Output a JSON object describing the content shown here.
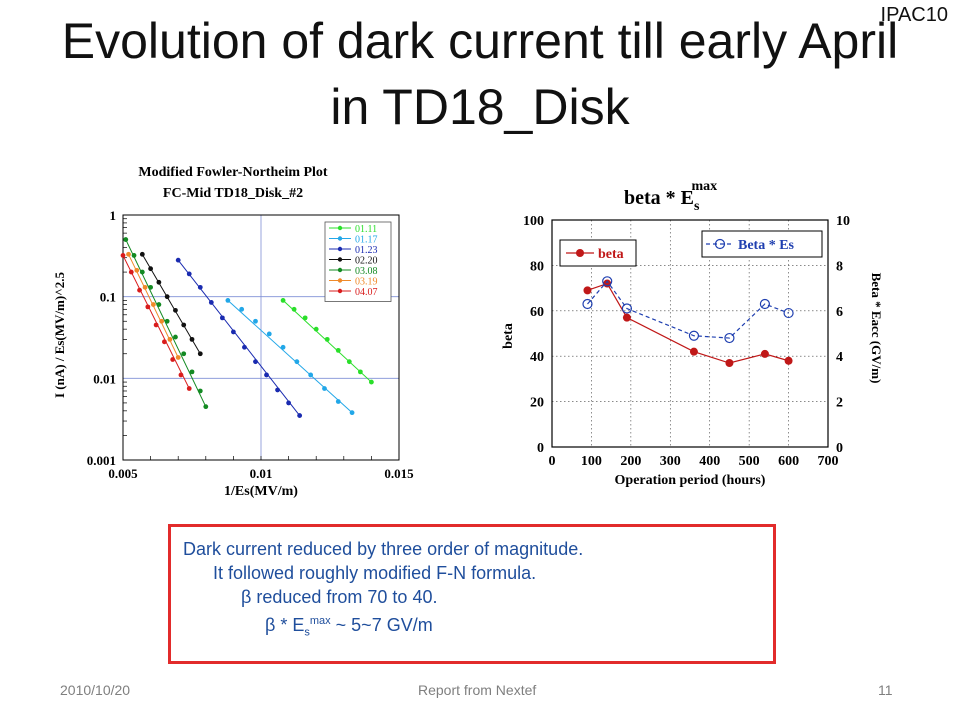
{
  "header": {
    "tag": "IPAC10",
    "title_line1": "Evolution of dark current till early April",
    "title_line2": "in TD18_Disk"
  },
  "chart_data": [
    {
      "type": "scatter",
      "title": "Modified Fowler-Northeim Plot",
      "subtitle": "FC-Mid   TD18_Disk_#2",
      "xlabel": "1/Es(MV/m)",
      "ylabel": "I (nA) / Es(MV/m)^2.5",
      "yscale": "log",
      "xlim": [
        0.005,
        0.015
      ],
      "ylim": [
        0.001,
        1
      ],
      "xticks": [
        "0.005",
        "0.01",
        "0.015"
      ],
      "yticks": [
        "0.001",
        "0.01",
        "0.1",
        "1"
      ],
      "legend_position": "top-right",
      "series": [
        {
          "name": "01.11",
          "color": "#2adf2a",
          "x": [
            0.0108,
            0.0112,
            0.0116,
            0.012,
            0.0124,
            0.0128,
            0.0132,
            0.0136,
            0.014
          ],
          "y": [
            0.09,
            0.07,
            0.055,
            0.04,
            0.03,
            0.022,
            0.016,
            0.012,
            0.009
          ]
        },
        {
          "name": "01.17",
          "color": "#22a7e8",
          "x": [
            0.0088,
            0.0093,
            0.0098,
            0.0103,
            0.0108,
            0.0113,
            0.0118,
            0.0123,
            0.0128,
            0.0133
          ],
          "y": [
            0.09,
            0.07,
            0.05,
            0.035,
            0.024,
            0.016,
            0.011,
            0.0075,
            0.0052,
            0.0038
          ]
        },
        {
          "name": "01.23",
          "color": "#1a2bb0",
          "x": [
            0.007,
            0.0074,
            0.0078,
            0.0082,
            0.0086,
            0.009,
            0.0094,
            0.0098,
            0.0102,
            0.0106,
            0.011,
            0.0114
          ],
          "y": [
            0.28,
            0.19,
            0.13,
            0.085,
            0.055,
            0.037,
            0.024,
            0.016,
            0.011,
            0.0072,
            0.005,
            0.0035
          ]
        },
        {
          "name": "02.20",
          "color": "#111111",
          "x": [
            0.0057,
            0.006,
            0.0063,
            0.0066,
            0.0069,
            0.0072,
            0.0075,
            0.0078
          ],
          "y": [
            0.33,
            0.22,
            0.15,
            0.1,
            0.068,
            0.045,
            0.03,
            0.02
          ]
        },
        {
          "name": "03.08",
          "color": "#138a22",
          "x": [
            0.0051,
            0.0054,
            0.0057,
            0.006,
            0.0063,
            0.0066,
            0.0069,
            0.0072,
            0.0075,
            0.0078,
            0.008
          ],
          "y": [
            0.5,
            0.32,
            0.2,
            0.13,
            0.08,
            0.05,
            0.032,
            0.02,
            0.012,
            0.007,
            0.0045
          ]
        },
        {
          "name": "03.19",
          "color": "#ef8a2a",
          "x": [
            0.0052,
            0.0055,
            0.0058,
            0.0061,
            0.0064,
            0.0067,
            0.007
          ],
          "y": [
            0.33,
            0.21,
            0.13,
            0.08,
            0.05,
            0.03,
            0.018
          ]
        },
        {
          "name": "04.07",
          "color": "#d91c1c",
          "x": [
            0.005,
            0.0053,
            0.0056,
            0.0059,
            0.0062,
            0.0065,
            0.0068,
            0.0071,
            0.0074
          ],
          "y": [
            0.32,
            0.2,
            0.12,
            0.075,
            0.045,
            0.028,
            0.017,
            0.011,
            0.0075
          ]
        }
      ]
    },
    {
      "type": "line",
      "title": "beta * E",
      "title_superscript": "max",
      "title_subscript": "s",
      "xlabel": "Operation period (hours)",
      "ylabel": "beta",
      "y2label": "Beta * Eacc  (GV/m)",
      "xlim": [
        0,
        700
      ],
      "ylim": [
        0,
        100
      ],
      "y2lim": [
        0,
        10
      ],
      "xticks": [
        "0",
        "100",
        "200",
        "300",
        "400",
        "500",
        "600",
        "700"
      ],
      "yticks": [
        "0",
        "20",
        "40",
        "60",
        "80",
        "100"
      ],
      "y2ticks": [
        "0",
        "2",
        "4",
        "6",
        "8",
        "10"
      ],
      "grid": true,
      "series": [
        {
          "name": "beta",
          "axis": "left",
          "color": "#c01818",
          "style": "solid",
          "marker": "filled-circle",
          "x": [
            90,
            140,
            190,
            360,
            450,
            540,
            600
          ],
          "y": [
            69,
            72,
            57,
            42,
            37,
            41,
            38
          ]
        },
        {
          "name": "Beta * Es",
          "axis": "right",
          "color": "#1f3fb0",
          "style": "dashed",
          "marker": "open-circle",
          "x": [
            90,
            140,
            190,
            360,
            450,
            540,
            600
          ],
          "y": [
            6.3,
            7.3,
            6.1,
            4.9,
            4.8,
            6.3,
            5.9
          ]
        }
      ]
    }
  ],
  "summary": {
    "line1": "Dark current reduced by three order of magnitude.",
    "line2": "It followed roughly modified F-N formula.",
    "line3_symbol": "β",
    "line3_text": " reduced from 70 to 40.",
    "line4_symbol": "β",
    "line4_prefix": " * E",
    "line4_sub": "s",
    "line4_sup": "max",
    "line4_suffix": " ~ 5~7 GV/m"
  },
  "footer": {
    "date": "2010/10/20",
    "center": "Report from Nextef",
    "page": "11"
  }
}
